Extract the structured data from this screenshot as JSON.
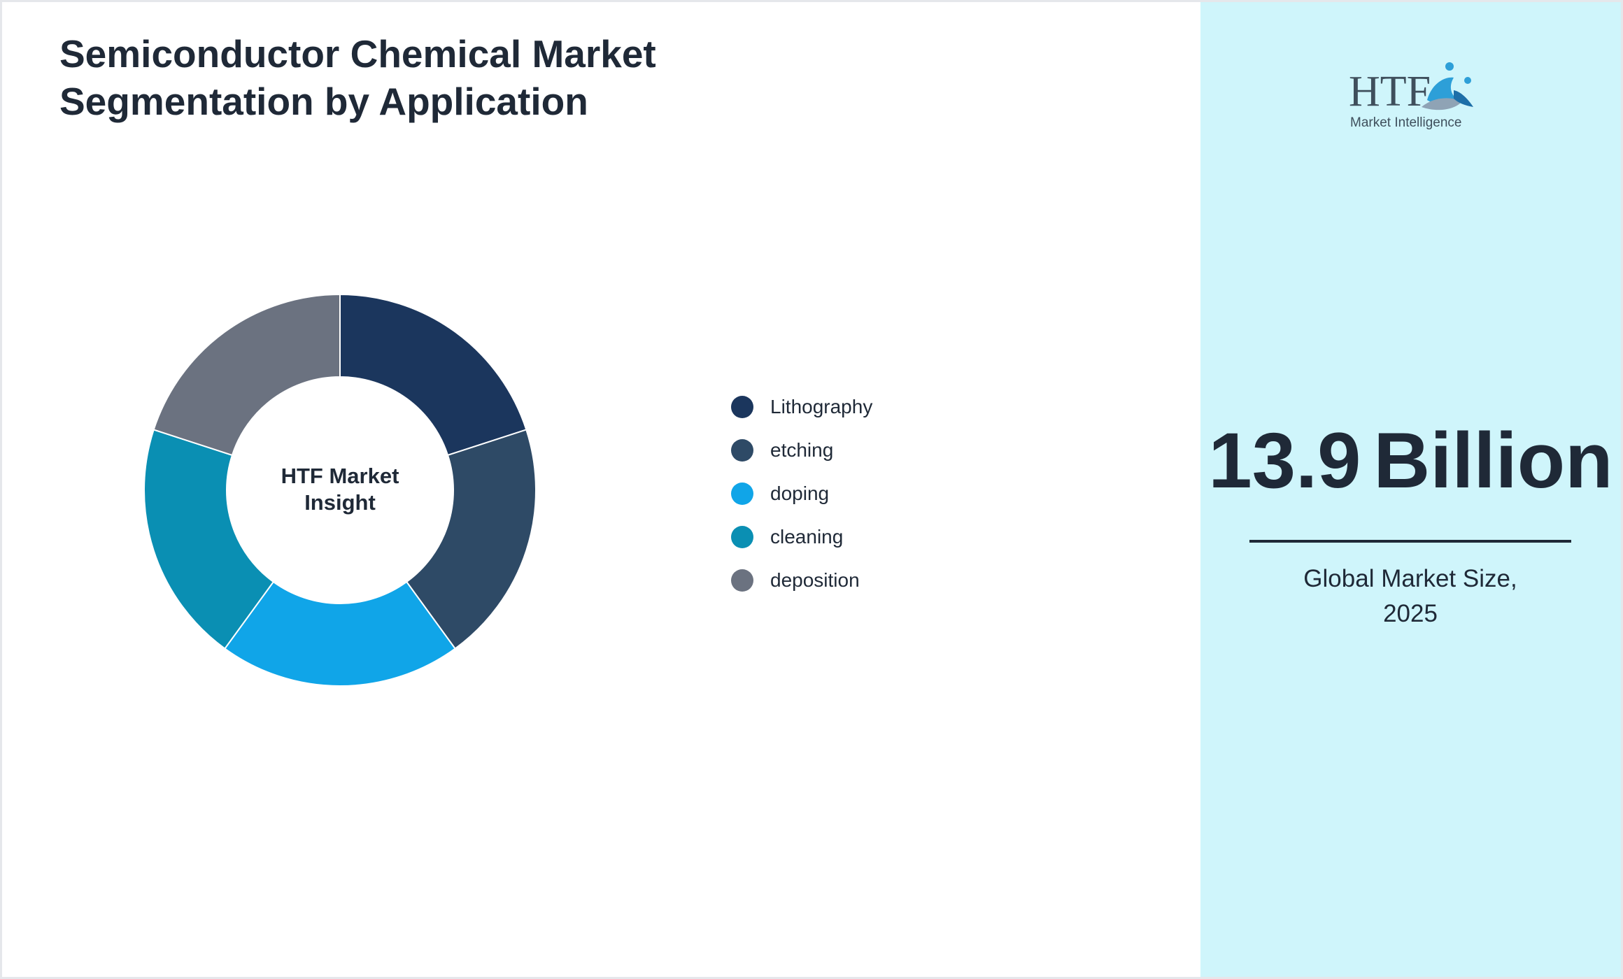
{
  "title": "Semiconductor Chemical Market Segmentation by Application",
  "chart_data": {
    "type": "pie",
    "donut": true,
    "center_label": "HTF Market Insight",
    "categories": [
      "Lithography",
      "etching",
      "doping",
      "cleaning",
      "deposition"
    ],
    "values": [
      20,
      20,
      20,
      20,
      20
    ],
    "colors": [
      "#1b365d",
      "#2e4a66",
      "#10a5e8",
      "#0a8fb3",
      "#6b7280"
    ],
    "legend_position": "right"
  },
  "summary": {
    "value": "13.9",
    "unit": "Billion",
    "caption_line1": "Global Market Size,",
    "caption_line2": "2025"
  },
  "logo": {
    "text": "HTF",
    "subtext": "Market Intelligence",
    "colors": [
      "#3f4f5c",
      "#2d9fd8",
      "#8fa3b5"
    ]
  },
  "colors": {
    "title": "#1f2937",
    "sidebar_bg": "#cff5fb"
  }
}
